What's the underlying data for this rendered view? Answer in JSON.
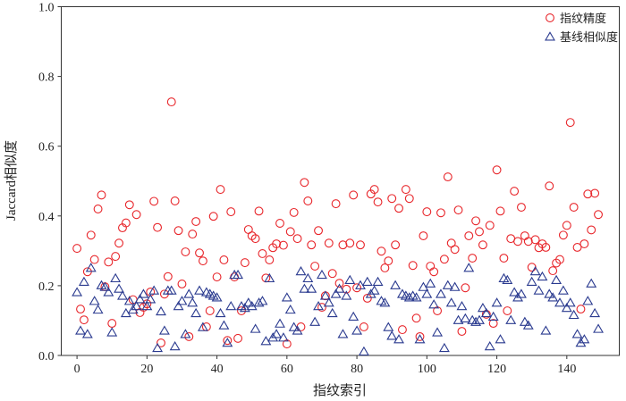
{
  "chart_data": {
    "type": "scatter",
    "xlabel": "指纹索引",
    "ylabel": "Jaccard相似度",
    "xlim": [
      -4.5,
      155
    ],
    "ylim": [
      0,
      1
    ],
    "xticks": [
      0,
      20,
      40,
      60,
      80,
      100,
      120,
      140
    ],
    "yticks": [
      "0.0",
      "0.2",
      "0.4",
      "0.6",
      "0.8",
      "1.0"
    ],
    "grid": false,
    "legend_position": "top-right",
    "x": [
      0,
      1,
      2,
      3,
      4,
      5,
      6,
      7,
      8,
      9,
      10,
      11,
      12,
      13,
      14,
      15,
      16,
      17,
      18,
      19,
      20,
      21,
      22,
      23,
      24,
      25,
      26,
      27,
      28,
      29,
      30,
      31,
      32,
      33,
      34,
      35,
      36,
      37,
      38,
      39,
      40,
      41,
      42,
      43,
      44,
      45,
      46,
      47,
      48,
      49,
      50,
      51,
      52,
      53,
      54,
      55,
      56,
      57,
      58,
      59,
      60,
      61,
      62,
      63,
      64,
      65,
      66,
      67,
      68,
      69,
      70,
      71,
      72,
      73,
      74,
      75,
      76,
      77,
      78,
      79,
      80,
      81,
      82,
      83,
      84,
      85,
      86,
      87,
      88,
      89,
      90,
      91,
      92,
      93,
      94,
      95,
      96,
      97,
      98,
      99,
      100,
      101,
      102,
      103,
      104,
      105,
      106,
      107,
      108,
      109,
      110,
      111,
      112,
      113,
      114,
      115,
      116,
      117,
      118,
      119,
      120,
      121,
      122,
      123,
      124,
      125,
      126,
      127,
      128,
      129,
      130,
      131,
      132,
      133,
      134,
      135,
      136,
      137,
      138,
      139,
      140,
      141,
      142,
      143,
      144,
      145,
      146,
      147,
      148,
      149
    ],
    "series": [
      {
        "name": "指纹精度",
        "marker": "circle",
        "color": "#e8262b",
        "values": [
          0.307,
          0.133,
          0.102,
          0.24,
          0.345,
          0.275,
          0.42,
          0.46,
          0.197,
          0.268,
          0.092,
          0.284,
          0.322,
          0.366,
          0.38,
          0.432,
          0.16,
          0.404,
          0.123,
          0.138,
          0.148,
          0.182,
          0.442,
          0.367,
          0.036,
          0.176,
          0.226,
          0.727,
          0.443,
          0.358,
          0.205,
          0.297,
          0.054,
          0.348,
          0.384,
          0.294,
          0.271,
          0.082,
          0.128,
          0.399,
          0.225,
          0.476,
          0.274,
          0.043,
          0.412,
          0.225,
          0.049,
          0.128,
          0.266,
          0.361,
          0.343,
          0.335,
          0.414,
          0.292,
          0.222,
          0.274,
          0.309,
          0.32,
          0.379,
          0.316,
          0.033,
          0.355,
          0.41,
          0.335,
          0.082,
          0.496,
          0.443,
          0.317,
          0.256,
          0.358,
          0.138,
          0.171,
          0.322,
          0.235,
          0.435,
          0.207,
          0.317,
          0.19,
          0.322,
          0.46,
          0.194,
          0.317,
          0.082,
          0.164,
          0.463,
          0.476,
          0.44,
          0.299,
          0.251,
          0.271,
          0.45,
          0.317,
          0.422,
          0.074,
          0.476,
          0.45,
          0.258,
          0.107,
          0.054,
          0.343,
          0.412,
          0.256,
          0.24,
          0.128,
          0.409,
          0.276,
          0.512,
          0.322,
          0.304,
          0.417,
          0.069,
          0.194,
          0.343,
          0.279,
          0.386,
          0.355,
          0.317,
          0.118,
          0.373,
          0.092,
          0.532,
          0.414,
          0.279,
          0.128,
          0.335,
          0.471,
          0.327,
          0.425,
          0.343,
          0.327,
          0.253,
          0.332,
          0.309,
          0.32,
          0.31,
          0.486,
          0.243,
          0.265,
          0.275,
          0.345,
          0.373,
          0.668,
          0.425,
          0.31,
          0.133,
          0.32,
          0.463,
          0.36,
          0.465,
          0.404
        ]
      },
      {
        "name": "基线相似度",
        "marker": "triangle",
        "color": "#2a3a8f",
        "values": [
          0.18,
          0.07,
          0.21,
          0.06,
          0.25,
          0.155,
          0.13,
          0.2,
          0.195,
          0.18,
          0.065,
          0.22,
          0.19,
          0.17,
          0.12,
          0.155,
          0.13,
          0.14,
          0.16,
          0.175,
          0.14,
          0.16,
          0.185,
          0.02,
          0.125,
          0.07,
          0.185,
          0.185,
          0.025,
          0.14,
          0.155,
          0.06,
          0.175,
          0.15,
          0.12,
          0.185,
          0.08,
          0.18,
          0.175,
          0.17,
          0.165,
          0.12,
          0.085,
          0.035,
          0.14,
          0.23,
          0.23,
          0.14,
          0.135,
          0.15,
          0.14,
          0.075,
          0.15,
          0.155,
          0.04,
          0.22,
          0.05,
          0.06,
          0.09,
          0.05,
          0.165,
          0.13,
          0.08,
          0.07,
          0.24,
          0.19,
          0.22,
          0.19,
          0.095,
          0.14,
          0.23,
          0.17,
          0.15,
          0.12,
          0.175,
          0.19,
          0.06,
          0.17,
          0.215,
          0.11,
          0.07,
          0.2,
          0.01,
          0.21,
          0.175,
          0.185,
          0.21,
          0.155,
          0.15,
          0.08,
          0.055,
          0.2,
          0.045,
          0.175,
          0.17,
          0.165,
          0.17,
          0.165,
          0.045,
          0.195,
          0.175,
          0.205,
          0.145,
          0.065,
          0.175,
          0.02,
          0.2,
          0.15,
          0.195,
          0.1,
          0.14,
          0.105,
          0.25,
          0.1,
          0.095,
          0.1,
          0.135,
          0.12,
          0.025,
          0.11,
          0.15,
          0.045,
          0.22,
          0.215,
          0.1,
          0.18,
          0.165,
          0.175,
          0.095,
          0.085,
          0.21,
          0.24,
          0.185,
          0.225,
          0.07,
          0.175,
          0.165,
          0.215,
          0.15,
          0.185,
          0.135,
          0.15,
          0.115,
          0.06,
          0.035,
          0.045,
          0.155,
          0.205,
          0.12,
          0.075
        ]
      }
    ]
  }
}
